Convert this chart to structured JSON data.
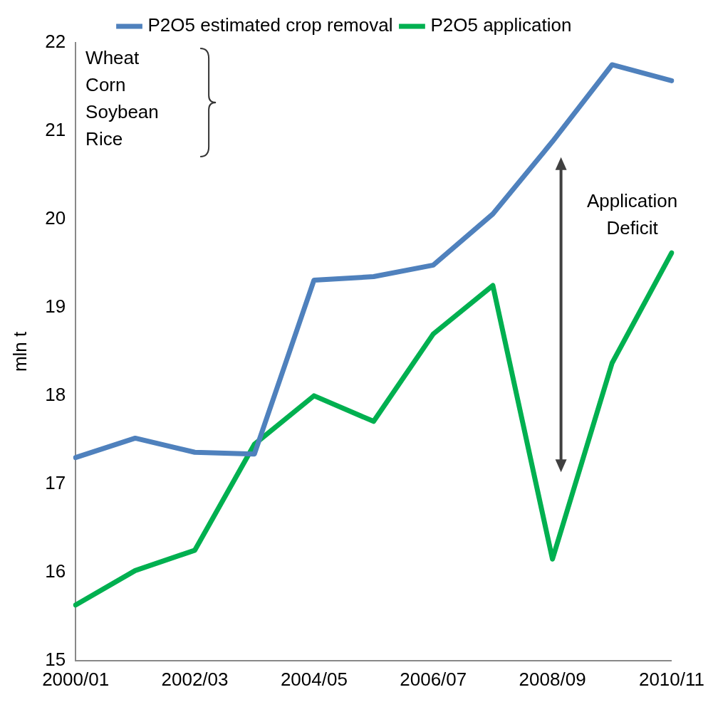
{
  "chart_data": {
    "type": "line",
    "ylabel": "mln t",
    "categories": [
      "2000/01",
      null,
      "2002/03",
      null,
      "2004/05",
      null,
      "2006/07",
      null,
      "2008/09",
      null,
      "2010/11"
    ],
    "series": [
      {
        "name": "P2O5 estimated crop removal",
        "color": "#4f81bd",
        "values": [
          17.3,
          17.52,
          17.36,
          17.34,
          19.31,
          19.35,
          19.48,
          20.06,
          20.88,
          21.75,
          21.57
        ]
      },
      {
        "name": "P2O5 application",
        "color": "#00b050",
        "values": [
          15.63,
          16.02,
          16.25,
          17.45,
          18.0,
          17.71,
          18.7,
          19.25,
          16.15,
          18.37,
          19.62
        ]
      }
    ],
    "ylim": [
      15,
      22
    ],
    "yticks": [
      15,
      16,
      17,
      18,
      19,
      20,
      21,
      22
    ],
    "grid": false,
    "legend": "top",
    "marker": "none",
    "line_style": "solid",
    "annotations": [
      "Wheat\nCorn\nSoybean\nRice",
      "Application\nDeficit"
    ]
  }
}
